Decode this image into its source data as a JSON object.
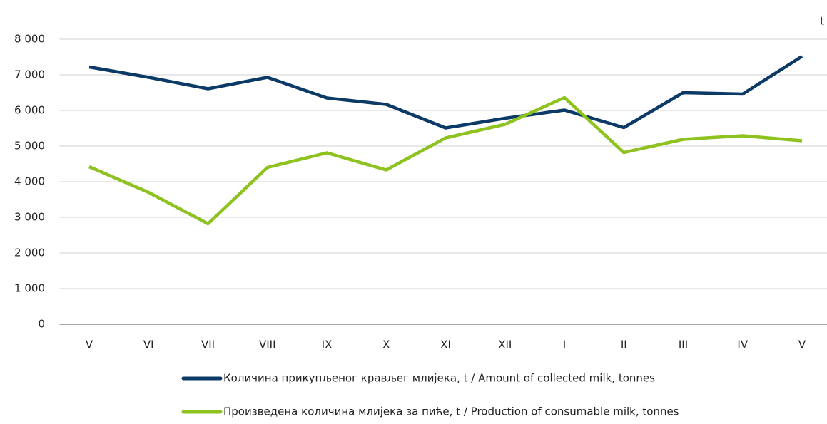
{
  "chart_data": {
    "type": "line",
    "unit_label": "t",
    "categories": [
      "V",
      "VI",
      "VII",
      "VIII",
      "IX",
      "X",
      "XI",
      "XII",
      "I",
      "II",
      "III",
      "IV",
      "V"
    ],
    "series": [
      {
        "name": "Количина прикупљеног крављег млијека, t / Amount of collected milk, tonnes",
        "color": "#0b3a66",
        "values": [
          7220,
          6930,
          6610,
          6930,
          6350,
          6170,
          5510,
          5780,
          6010,
          5520,
          6500,
          6460,
          7520
        ]
      },
      {
        "name": "Произведена количина млијека за пиће, t / Production of consumable milk, tonnes",
        "color": "#8dc21f",
        "values": [
          4420,
          3700,
          2820,
          4400,
          4810,
          4330,
          5230,
          5610,
          6360,
          4820,
          5190,
          5290,
          5150
        ]
      }
    ],
    "ylim": [
      0,
      8000
    ],
    "yticks": [
      0,
      {
        "value": 1000,
        "label": "1 000"
      },
      {
        "value": 2000,
        "label": "2 000"
      },
      {
        "value": 3000,
        "label": "3 000"
      },
      {
        "value": 4000,
        "label": "4 000"
      },
      {
        "value": 5000,
        "label": "5 000"
      },
      {
        "value": 6000,
        "label": "6 000"
      },
      {
        "value": 7000,
        "label": "7 000"
      },
      {
        "value": 8000,
        "label": "8 000"
      }
    ],
    "grid": true
  }
}
